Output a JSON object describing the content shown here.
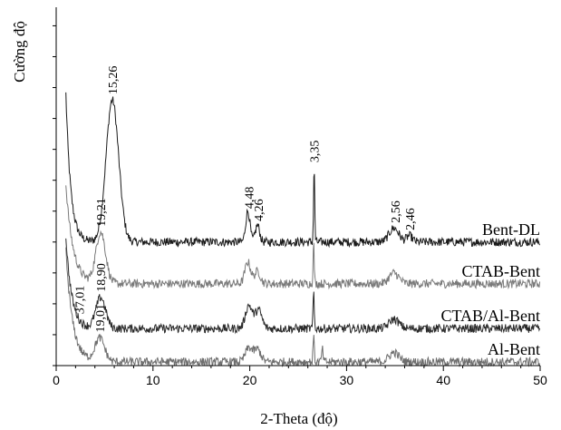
{
  "chart_data": {
    "type": "line",
    "title": "",
    "xlabel": "2-Theta (độ)",
    "ylabel": "Cường độ",
    "xlim": [
      0,
      50
    ],
    "xticks": [
      "0",
      "10",
      "20",
      "30",
      "40",
      "50"
    ],
    "grid": false,
    "legend": "none",
    "series": [
      {
        "name": "Bent-DL",
        "color": "#1a1a1a",
        "baseline": 4.0,
        "peaks": [
          {
            "x": 5.8,
            "h": 4.6,
            "w": 0.65
          },
          {
            "x": 19.8,
            "h": 1.0,
            "w": 0.22
          },
          {
            "x": 20.8,
            "h": 0.55,
            "w": 0.22
          },
          {
            "x": 26.65,
            "h": 2.4,
            "w": 0.06
          },
          {
            "x": 34.9,
            "h": 0.45,
            "w": 0.5
          },
          {
            "x": 36.5,
            "h": 0.2,
            "w": 0.3
          }
        ],
        "low_angle": {
          "h": 4.8,
          "decay": 0.5
        },
        "labels": [
          {
            "text": "15,26",
            "x": 5.8
          },
          {
            "text": "4,48",
            "x": 19.9
          },
          {
            "text": "4,26",
            "x": 20.9
          },
          {
            "text": "3,35",
            "x": 26.65
          },
          {
            "text": "2,56",
            "x": 35.0
          },
          {
            "text": "2,46",
            "x": 36.5
          }
        ]
      },
      {
        "name": "CTAB-Bent",
        "color": "#7a7a7a",
        "baseline": 2.65,
        "peaks": [
          {
            "x": 4.6,
            "h": 1.65,
            "w": 0.5
          },
          {
            "x": 19.8,
            "h": 0.7,
            "w": 0.3
          },
          {
            "x": 20.8,
            "h": 0.4,
            "w": 0.3
          },
          {
            "x": 26.6,
            "h": 1.3,
            "w": 0.06
          },
          {
            "x": 34.9,
            "h": 0.35,
            "w": 0.5
          }
        ],
        "low_angle": {
          "h": 3.2,
          "decay": 0.75
        },
        "labels": [
          {
            "text": "19,21",
            "x": 4.6
          }
        ]
      },
      {
        "name": "CTAB/Al-Bent",
        "color": "#2a2a2a",
        "baseline": 1.2,
        "peaks": [
          {
            "x": 4.6,
            "h": 1.0,
            "w": 0.5
          },
          {
            "x": 19.9,
            "h": 0.75,
            "w": 0.35
          },
          {
            "x": 20.9,
            "h": 0.6,
            "w": 0.35
          },
          {
            "x": 26.6,
            "h": 1.2,
            "w": 0.06
          },
          {
            "x": 34.9,
            "h": 0.3,
            "w": 0.5
          }
        ],
        "low_angle": {
          "h": 3.0,
          "decay": 0.6
        },
        "labels": [
          {
            "text": "37,01",
            "x": 2.4
          },
          {
            "text": "18,90",
            "x": 4.6
          }
        ]
      },
      {
        "name": "Al-Bent",
        "color": "#6e6e6e",
        "baseline": 0.12,
        "peaks": [
          {
            "x": 4.5,
            "h": 0.75,
            "w": 0.5
          },
          {
            "x": 19.9,
            "h": 0.45,
            "w": 0.35
          },
          {
            "x": 20.8,
            "h": 0.4,
            "w": 0.35
          },
          {
            "x": 26.6,
            "h": 0.9,
            "w": 0.06
          },
          {
            "x": 27.5,
            "h": 0.4,
            "w": 0.08
          },
          {
            "x": 34.9,
            "h": 0.3,
            "w": 0.5
          }
        ],
        "low_angle": {
          "h": 3.6,
          "decay": 0.7
        },
        "labels": [
          {
            "text": "19,01",
            "x": 4.5
          }
        ]
      }
    ]
  }
}
